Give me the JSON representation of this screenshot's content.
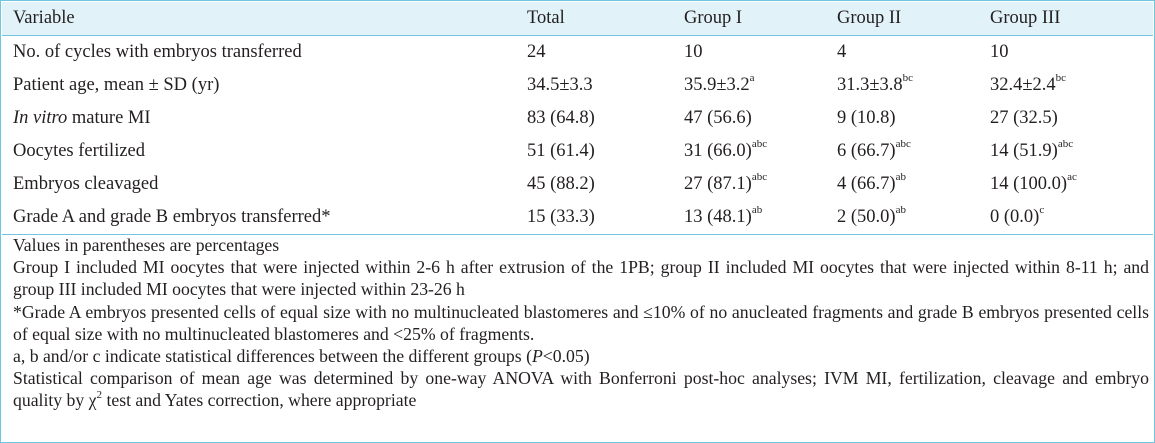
{
  "table": {
    "headers": [
      "Variable",
      "Total",
      "Group I",
      "Group II",
      "Group III"
    ],
    "rows": [
      {
        "variable": "No. of cycles with embryos transferred",
        "cells": [
          {
            "value": "24",
            "sup": ""
          },
          {
            "value": "10",
            "sup": ""
          },
          {
            "value": "4",
            "sup": ""
          },
          {
            "value": "10",
            "sup": ""
          }
        ]
      },
      {
        "variable": "Patient age, mean ± SD (yr)",
        "cells": [
          {
            "value": "34.5±3.3",
            "sup": ""
          },
          {
            "value": "35.9±3.2",
            "sup": "a"
          },
          {
            "value": "31.3±3.8",
            "sup": "bc"
          },
          {
            "value": "32.4±2.4",
            "sup": "bc"
          }
        ]
      },
      {
        "variable_italic": "In vitro",
        "variable": " mature MI",
        "cells": [
          {
            "value": "83 (64.8)",
            "sup": ""
          },
          {
            "value": "47 (56.6)",
            "sup": ""
          },
          {
            "value": "9 (10.8)",
            "sup": ""
          },
          {
            "value": "27 (32.5)",
            "sup": ""
          }
        ]
      },
      {
        "variable": "Oocytes fertilized",
        "cells": [
          {
            "value": "51 (61.4)",
            "sup": ""
          },
          {
            "value": "31 (66.0)",
            "sup": "abc"
          },
          {
            "value": "6 (66.7)",
            "sup": "abc"
          },
          {
            "value": "14 (51.9)",
            "sup": "abc"
          }
        ]
      },
      {
        "variable": "Embryos cleavaged",
        "cells": [
          {
            "value": "45 (88.2)",
            "sup": ""
          },
          {
            "value": "27 (87.1)",
            "sup": "abc"
          },
          {
            "value": "4 (66.7)",
            "sup": "ab"
          },
          {
            "value": "14 (100.0)",
            "sup": "ac"
          }
        ]
      },
      {
        "variable": "Grade A and grade B embryos transferred*",
        "cells": [
          {
            "value": "15 (33.3)",
            "sup": ""
          },
          {
            "value": "13 (48.1)",
            "sup": "ab"
          },
          {
            "value": "2 (50.0)",
            "sup": "ab"
          },
          {
            "value": "0 (0.0)",
            "sup": "c"
          }
        ]
      }
    ]
  },
  "notes": {
    "n1": "Values in parentheses are percentages",
    "n2": "Group I included MI oocytes that were injected within 2-6 h after extrusion of the 1PB; group II included MI oocytes that were injected within 8-11 h; and group III included MI oocytes that were injected within 23-26 h",
    "n3": "*Grade A embryos presented cells of equal size with no multinucleated blastomeres and ≤10% of no anucleated fragments and grade B embryos presented cells of equal size with no multinucleated blastomeres and <25% of fragments.",
    "n4_a": "a, b and/or c indicate statistical differences between the different groups (",
    "n4_p": "P",
    "n4_b": "<0.05)",
    "n5_a": "Statistical comparison of mean age was determined by one-way ANOVA with Bonferroni post-hoc analyses; IVM MI, fertilization, cleavage and embryo quality by χ",
    "n5_sup": "2",
    "n5_b": " test and Yates correction, where appropriate"
  }
}
